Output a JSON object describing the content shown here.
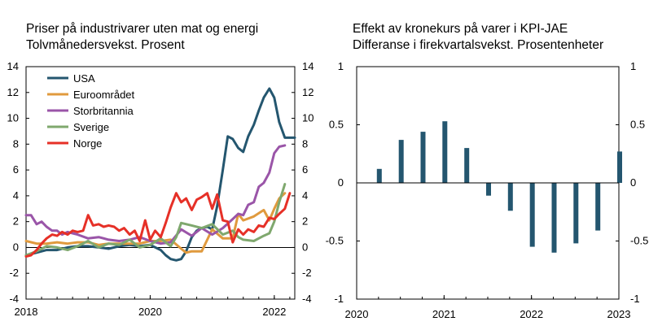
{
  "chart_data": [
    {
      "type": "line",
      "title": "Priser på industrivarer uten mat og energi",
      "subtitle": "Tolvmånedersvekst. Prosent",
      "xlim": [
        2018,
        2022.33
      ],
      "ylim": [
        -4,
        14
      ],
      "yticks": [
        -4,
        -2,
        0,
        2,
        4,
        6,
        8,
        10,
        12,
        14
      ],
      "xticks": [
        {
          "value": 2018,
          "label": "2018"
        },
        {
          "value": 2020,
          "label": "2020"
        },
        {
          "value": 2022,
          "label": "2022"
        }
      ],
      "legend_position": "top-left",
      "series": [
        {
          "name": "USA",
          "color": "#24566f",
          "x": [
            2018.0,
            2018.17,
            2018.33,
            2018.5,
            2018.67,
            2018.83,
            2019.0,
            2019.17,
            2019.33,
            2019.5,
            2019.67,
            2019.83,
            2020.0,
            2020.17,
            2020.25,
            2020.33,
            2020.42,
            2020.5,
            2020.58,
            2020.67,
            2020.75,
            2020.83,
            2020.92,
            2021.0,
            2021.08,
            2021.17,
            2021.25,
            2021.33,
            2021.42,
            2021.5,
            2021.58,
            2021.67,
            2021.75,
            2021.83,
            2021.92,
            2022.0,
            2022.08,
            2022.17,
            2022.25,
            2022.33
          ],
          "y": [
            -0.6,
            -0.4,
            -0.2,
            -0.2,
            0.0,
            0.1,
            0.1,
            0.0,
            -0.1,
            0.1,
            0.2,
            0.1,
            0.2,
            -0.2,
            -0.6,
            -0.9,
            -1.0,
            -0.9,
            -0.3,
            0.8,
            1.3,
            1.5,
            1.6,
            1.4,
            3.2,
            6.0,
            8.6,
            8.4,
            7.7,
            7.4,
            8.6,
            9.5,
            10.6,
            11.6,
            12.3,
            11.6,
            9.7,
            8.5,
            8.5,
            8.5
          ]
        },
        {
          "name": "Euroområdet",
          "color": "#e09a3e",
          "x": [
            2018.0,
            2018.17,
            2018.33,
            2018.5,
            2018.67,
            2018.83,
            2019.0,
            2019.17,
            2019.33,
            2019.5,
            2019.67,
            2019.83,
            2020.0,
            2020.17,
            2020.33,
            2020.5,
            2020.58,
            2020.67,
            2020.83,
            2021.0,
            2021.17,
            2021.33,
            2021.42,
            2021.5,
            2021.67,
            2021.83,
            2021.92,
            2022.0,
            2022.08,
            2022.17
          ],
          "y": [
            0.5,
            0.3,
            0.3,
            0.4,
            0.3,
            0.4,
            0.4,
            0.2,
            0.3,
            0.3,
            0.3,
            0.3,
            0.5,
            0.5,
            0.6,
            -0.1,
            -0.4,
            -0.3,
            -0.3,
            1.4,
            0.7,
            0.7,
            2.6,
            2.1,
            2.4,
            2.9,
            2.1,
            3.0,
            3.8,
            4.2
          ]
        },
        {
          "name": "Storbritannia",
          "color": "#9a55a8",
          "x": [
            2018.0,
            2018.08,
            2018.17,
            2018.25,
            2018.33,
            2018.42,
            2018.5,
            2018.58,
            2018.67,
            2018.75,
            2018.83,
            2019.0,
            2019.17,
            2019.33,
            2019.5,
            2019.67,
            2019.83,
            2020.0,
            2020.17,
            2020.33,
            2020.5,
            2020.67,
            2020.83,
            2021.0,
            2021.17,
            2021.33,
            2021.42,
            2021.5,
            2021.58,
            2021.67,
            2021.75,
            2021.83,
            2021.92,
            2022.0,
            2022.08,
            2022.17
          ],
          "y": [
            2.5,
            2.5,
            1.8,
            2.0,
            1.6,
            1.3,
            1.3,
            1.0,
            1.2,
            1.1,
            1.0,
            0.7,
            0.8,
            0.6,
            0.5,
            0.6,
            0.8,
            0.5,
            0.3,
            0.4,
            1.4,
            0.9,
            1.5,
            1.0,
            1.5,
            2.2,
            2.6,
            2.5,
            3.3,
            3.5,
            4.7,
            5.0,
            5.8,
            7.3,
            7.8,
            7.9
          ]
        },
        {
          "name": "Sverige",
          "color": "#7fa86e",
          "x": [
            2018.0,
            2018.17,
            2018.33,
            2018.5,
            2018.67,
            2018.83,
            2019.0,
            2019.17,
            2019.33,
            2019.5,
            2019.67,
            2019.83,
            2020.0,
            2020.17,
            2020.33,
            2020.42,
            2020.5,
            2020.67,
            2020.83,
            2021.0,
            2021.17,
            2021.33,
            2021.42,
            2021.5,
            2021.67,
            2021.83,
            2021.92,
            2022.0,
            2022.08,
            2022.17
          ],
          "y": [
            -0.6,
            -0.3,
            0.1,
            0.0,
            -0.2,
            0.1,
            0.5,
            0.0,
            0.3,
            0.2,
            0.6,
            0.0,
            0.2,
            0.7,
            0.1,
            0.8,
            1.9,
            1.7,
            1.5,
            1.8,
            1.0,
            1.3,
            0.8,
            0.6,
            0.5,
            0.9,
            1.1,
            2.0,
            3.5,
            4.9
          ]
        },
        {
          "name": "Norge",
          "color": "#e63027",
          "x": [
            2018.0,
            2018.08,
            2018.17,
            2018.25,
            2018.33,
            2018.42,
            2018.5,
            2018.58,
            2018.67,
            2018.75,
            2018.83,
            2018.92,
            2019.0,
            2019.08,
            2019.17,
            2019.25,
            2019.33,
            2019.42,
            2019.5,
            2019.58,
            2019.67,
            2019.75,
            2019.83,
            2019.92,
            2020.0,
            2020.08,
            2020.17,
            2020.25,
            2020.33,
            2020.42,
            2020.5,
            2020.58,
            2020.67,
            2020.75,
            2020.83,
            2020.92,
            2021.0,
            2021.08,
            2021.17,
            2021.25,
            2021.33,
            2021.42,
            2021.5,
            2021.58,
            2021.67,
            2021.75,
            2021.83,
            2021.92,
            2022.0,
            2022.08,
            2022.17,
            2022.25
          ],
          "y": [
            -0.7,
            -0.6,
            -0.2,
            0.3,
            0.7,
            1.0,
            0.9,
            1.2,
            1.0,
            1.3,
            1.2,
            1.3,
            2.5,
            1.7,
            1.8,
            1.6,
            1.7,
            1.6,
            1.3,
            1.5,
            1.0,
            1.3,
            0.5,
            2.1,
            0.6,
            1.3,
            0.8,
            1.9,
            3.1,
            4.2,
            3.5,
            3.8,
            2.9,
            3.7,
            3.9,
            4.2,
            3.0,
            4.1,
            2.1,
            2.0,
            0.4,
            1.4,
            1.0,
            1.4,
            1.2,
            1.7,
            1.6,
            2.3,
            2.2,
            2.6,
            3.0,
            4.2
          ]
        }
      ]
    },
    {
      "type": "bar",
      "title": "Effekt av kronekurs på varer i KPI-JAE",
      "subtitle": "Differanse i firekvartalsvekst. Prosentenheter",
      "xlim": [
        2020,
        2023
      ],
      "ylim": [
        -1,
        1
      ],
      "yticks_left": [
        {
          "value": 1,
          "label": "1"
        },
        {
          "value": 0.5,
          "label": "0.5"
        },
        {
          "value": 0,
          "label": "0"
        },
        {
          "value": -0.5,
          "label": "-0.5"
        },
        {
          "value": -1,
          "label": "-1"
        }
      ],
      "yticks_right": [
        {
          "value": 1,
          "label": "1"
        },
        {
          "value": 0.5,
          "label": "0.5"
        },
        {
          "value": 0,
          "label": "0"
        },
        {
          "value": -0.5,
          "label": "-0.5"
        },
        {
          "value": -1,
          "label": "-1"
        }
      ],
      "xticks": [
        {
          "value": 2020,
          "label": "2020"
        },
        {
          "value": 2021,
          "label": "2021"
        },
        {
          "value": 2022,
          "label": "2022"
        },
        {
          "value": 2023,
          "label": "2023"
        }
      ],
      "bar_color": "#24566f",
      "x": [
        2020.25,
        2020.5,
        2020.75,
        2021.0,
        2021.25,
        2021.5,
        2021.75,
        2022.0,
        2022.25,
        2022.5,
        2022.75,
        2023.0
      ],
      "values": [
        0.12,
        0.37,
        0.44,
        0.53,
        0.3,
        -0.11,
        -0.24,
        -0.55,
        -0.6,
        -0.52,
        -0.41,
        0.27
      ]
    }
  ]
}
